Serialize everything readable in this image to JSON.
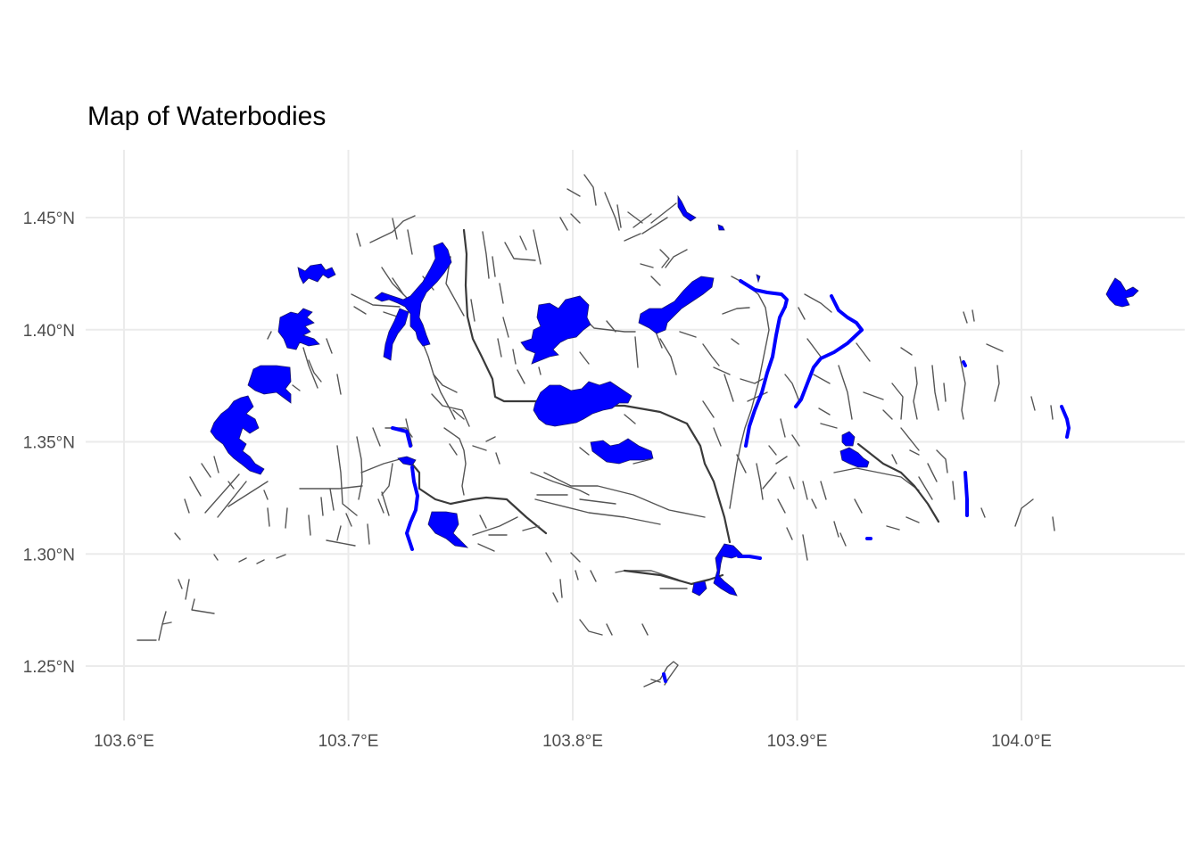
{
  "title": "Map of Waterbodies",
  "colors": {
    "waterbody_fill": "#0000ff",
    "waterway_line": "#4d4d4d",
    "grid": "#ebebeb",
    "background": "#ffffff"
  },
  "axes": {
    "x": {
      "ticks": [
        103.6,
        103.7,
        103.8,
        103.9,
        104.0
      ],
      "labels": [
        "103.6°E",
        "103.7°E",
        "103.8°E",
        "103.9°E",
        "104.0°E"
      ]
    },
    "y": {
      "ticks": [
        1.25,
        1.3,
        1.35,
        1.4,
        1.45
      ],
      "labels": [
        "1.25°N",
        "1.30°N",
        "1.35°N",
        "1.40°N",
        "1.45°N"
      ]
    }
  }
}
